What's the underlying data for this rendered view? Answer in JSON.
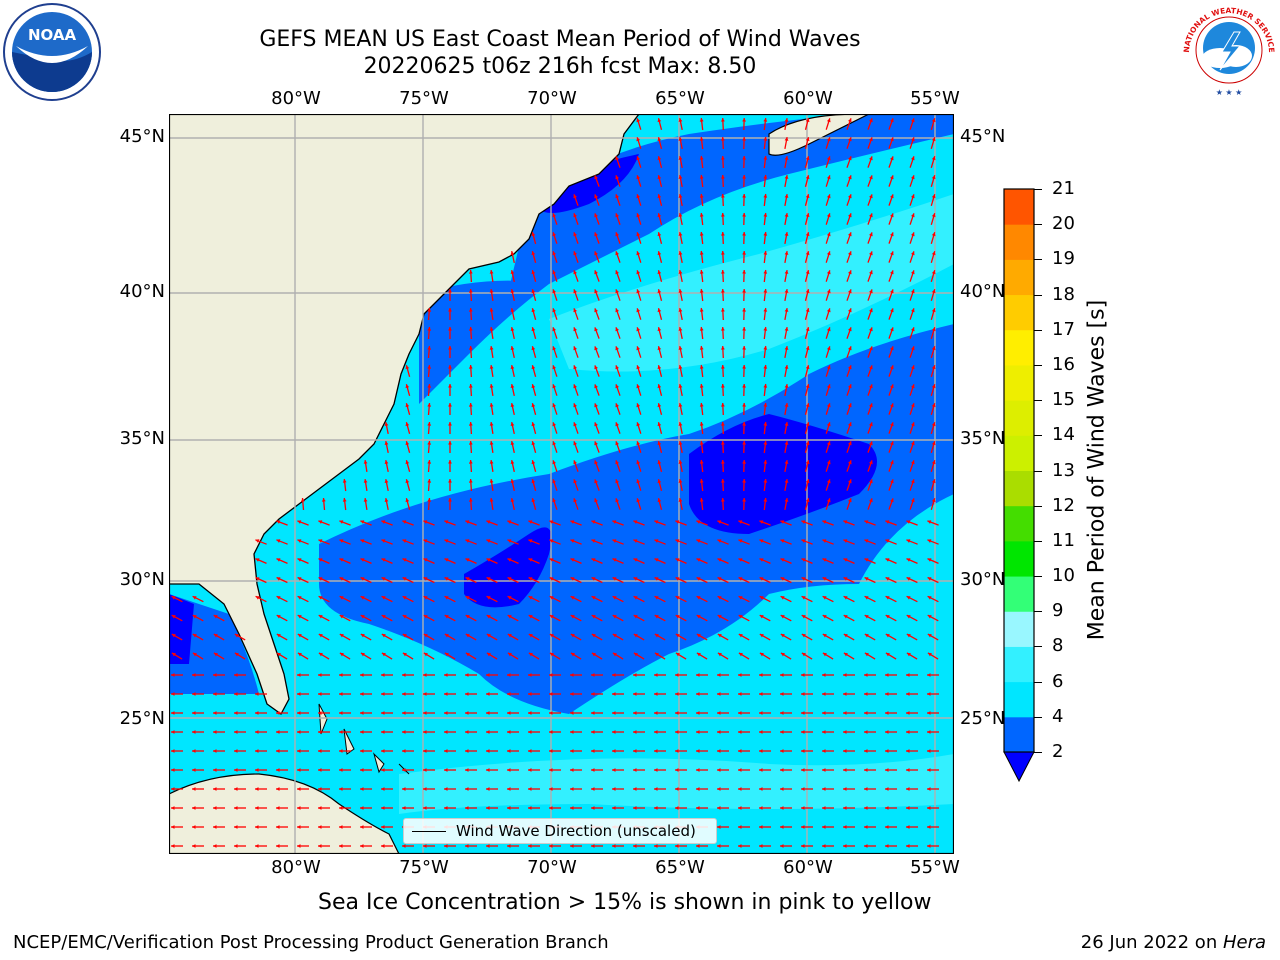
{
  "title": {
    "line1": "GEFS MEAN US East Coast Mean Period of Wind Waves",
    "line2": "20220625 t06z 216h fcst   Max: 8.50"
  },
  "map": {
    "region": "US East Coast / Western North Atlantic",
    "lon_labels": [
      "80°W",
      "75°W",
      "70°W",
      "65°W",
      "60°W",
      "55°W"
    ],
    "lat_labels": [
      "45°N",
      "40°N",
      "35°N",
      "30°N",
      "25°N"
    ],
    "land_color": "#efefdc",
    "coast_color": "#000000",
    "grid_color": "#b0b0b0",
    "arrow_color": "#ff0000",
    "legend_label": "Wind Wave Direction (unscaled)"
  },
  "colorbar": {
    "label": "Mean Period of Wind Waves [s]",
    "ticks": [
      "2",
      "4",
      "6",
      "8",
      "9",
      "10",
      "11",
      "12",
      "13",
      "14",
      "15",
      "16",
      "17",
      "18",
      "19",
      "20",
      "21"
    ],
    "colors": [
      "#0066ff",
      "#00e6ff",
      "#33f0ff",
      "#99f7ff",
      "#33ff77",
      "#00e600",
      "#44dd00",
      "#aadd00",
      "#ccf000",
      "#ddee00",
      "#eeee00",
      "#ffee00",
      "#ffcc00",
      "#ffaa00",
      "#ff8800",
      "#ff5500",
      "#ff2200",
      "#ff0000"
    ],
    "under_color": "#0000ff"
  },
  "note": "Sea Ice Concentration > 15% is shown in pink to yellow",
  "footer": {
    "left": "NCEP/EMC/Verification Post Processing Product Generation Branch",
    "date": "26 Jun 2022 on ",
    "machine": "Hera"
  },
  "logos": {
    "left": "NOAA",
    "right": "NATIONAL WEATHER SERVICE"
  }
}
